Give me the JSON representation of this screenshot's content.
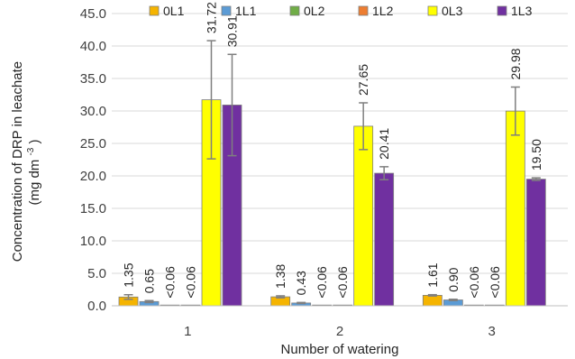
{
  "chart_data": {
    "type": "bar",
    "xlabel": "Number of watering",
    "ylabel_lines": [
      "Concentration of DRP in leachate",
      "(mg dm",
      "-3",
      ")"
    ],
    "ylim": [
      0,
      45
    ],
    "ytick_step": 5,
    "ytick_labels": [
      "0.0",
      "5.0",
      "10.0",
      "15.0",
      "20.0",
      "25.0",
      "30.0",
      "35.0",
      "40.0",
      "45.0"
    ],
    "grid": true,
    "legend_position": "top",
    "categories": [
      "1",
      "2",
      "3"
    ],
    "series": [
      {
        "name": "0L1",
        "color": "#F5B400",
        "values": [
          1.35,
          1.38,
          1.61
        ],
        "errors": [
          0.35,
          0.15,
          0.1
        ],
        "labels": [
          "1.35",
          "1.38",
          "1.61"
        ]
      },
      {
        "name": "1L1",
        "color": "#5B9BD5",
        "values": [
          0.65,
          0.43,
          0.9
        ],
        "errors": [
          0.15,
          0.08,
          0.1
        ],
        "labels": [
          "0.65",
          "0.43",
          "0.90"
        ]
      },
      {
        "name": "0L2",
        "color": "#70AD47",
        "values": [
          0.06,
          0.06,
          0.06
        ],
        "errors": [
          0,
          0,
          0
        ],
        "labels": [
          "<0.06",
          "<0.06",
          "<0.06"
        ]
      },
      {
        "name": "1L2",
        "color": "#ED7D31",
        "values": [
          0.06,
          0.06,
          0.06
        ],
        "errors": [
          0,
          0,
          0
        ],
        "labels": [
          "<0.06",
          "<0.06",
          "<0.06"
        ]
      },
      {
        "name": "0L3",
        "color": "#FFFF00",
        "values": [
          31.72,
          27.65,
          29.98
        ],
        "errors": [
          9.1,
          3.6,
          3.7
        ],
        "labels": [
          "31.72",
          "27.65",
          "29.98"
        ]
      },
      {
        "name": "1L3",
        "color": "#7030A0",
        "values": [
          30.91,
          20.41,
          19.5
        ],
        "errors": [
          7.8,
          1.0,
          0.2
        ],
        "labels": [
          "30.91",
          "20.41",
          "19.50"
        ]
      }
    ]
  }
}
